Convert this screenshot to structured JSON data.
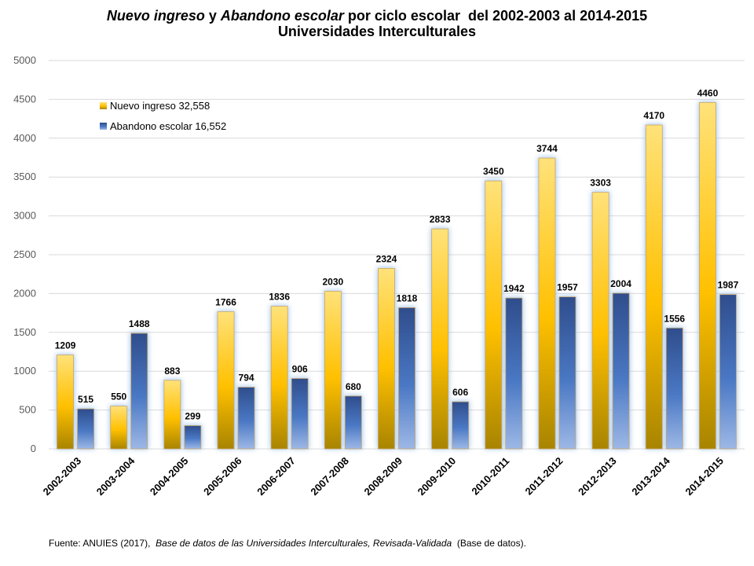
{
  "title": {
    "part1": "Nuevo ingreso",
    "part2": " y ",
    "part3": "Abandono escolar",
    "part4": " por ciclo escolar  del 2002-2003 al 2014-2015",
    "line2": "Universidades Interculturales"
  },
  "source": {
    "prefix": "Fuente: ANUIES (2017),  ",
    "italic": "Base de datos de las Universidades  Interculturales, Revisada-Validada",
    "suffix": "  (Base de datos)."
  },
  "colors": {
    "nuevo_top": "#ffe27a",
    "nuevo_mid": "#ffc000",
    "nuevo_bottom": "#a88400",
    "abandono_top": "#2f4d8c",
    "abandono_mid": "#4a78c4",
    "abandono_bottom": "#9db8e6",
    "glow": "#9cc3ec",
    "grid": "#d9d9d9"
  },
  "chart_data": {
    "type": "bar",
    "categories": [
      "2002-2003",
      "2003-2004",
      "2004-2005",
      "2005-2006",
      "2006-2007",
      "2007-2008",
      "2008-2009",
      "2009-2010",
      "2010-2011",
      "2011-2012",
      "2012-2013",
      "2013-2014",
      "2014-2015"
    ],
    "series": [
      {
        "name": "Nuevo ingreso",
        "legend_label": "Nuevo ingreso  32,558",
        "values": [
          1209,
          550,
          883,
          1766,
          1836,
          2030,
          2324,
          2833,
          3450,
          3744,
          3303,
          4170,
          4460
        ]
      },
      {
        "name": "Abandono escolar",
        "legend_label": "Abandono escolar  16,552",
        "values": [
          515,
          1488,
          299,
          794,
          906,
          680,
          1818,
          606,
          1942,
          1957,
          2004,
          1556,
          1987
        ]
      }
    ],
    "ylim": [
      0,
      5000
    ],
    "yticks": [
      0,
      500,
      1000,
      1500,
      2000,
      2500,
      3000,
      3500,
      4000,
      4500,
      5000
    ],
    "grid": true,
    "legend_position": "top-left",
    "data_labels": true
  }
}
